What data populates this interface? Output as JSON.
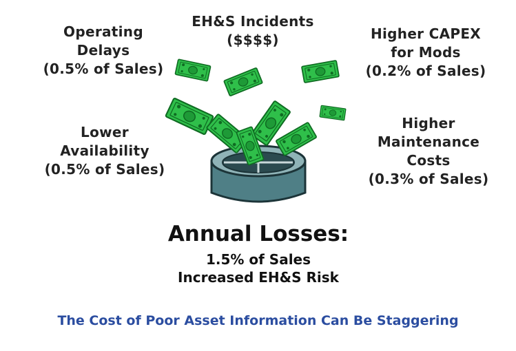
{
  "labels": {
    "ehs": {
      "line1": "EH&S Incidents",
      "line2": "($$$$)"
    },
    "operating": {
      "line1": "Operating",
      "line2": "Delays",
      "line3": "(0.5% of Sales)"
    },
    "capex": {
      "line1": "Higher CAPEX",
      "line2": "for Mods",
      "line3": "(0.2% of Sales)"
    },
    "availability": {
      "line1": "Lower",
      "line2": "Availability",
      "line3": "(0.5% of Sales)"
    },
    "maintenance": {
      "line1": "Higher",
      "line2": "Maintenance",
      "line3": "Costs",
      "line4": "(0.3% of Sales)"
    }
  },
  "summary": {
    "title": "Annual Losses:",
    "sales": "1.5% of Sales",
    "risk": "Increased EH&S Risk"
  },
  "footer": {
    "caption": "The Cost of Poor Asset Information Can Be Staggering"
  },
  "colors": {
    "money_green": "#2fbf4a",
    "money_dark": "#0f6b22",
    "drain": "#4f7f86",
    "caption_blue": "#2b4da0"
  },
  "icons": {
    "graphic": "money-down-the-drain-illustration"
  }
}
